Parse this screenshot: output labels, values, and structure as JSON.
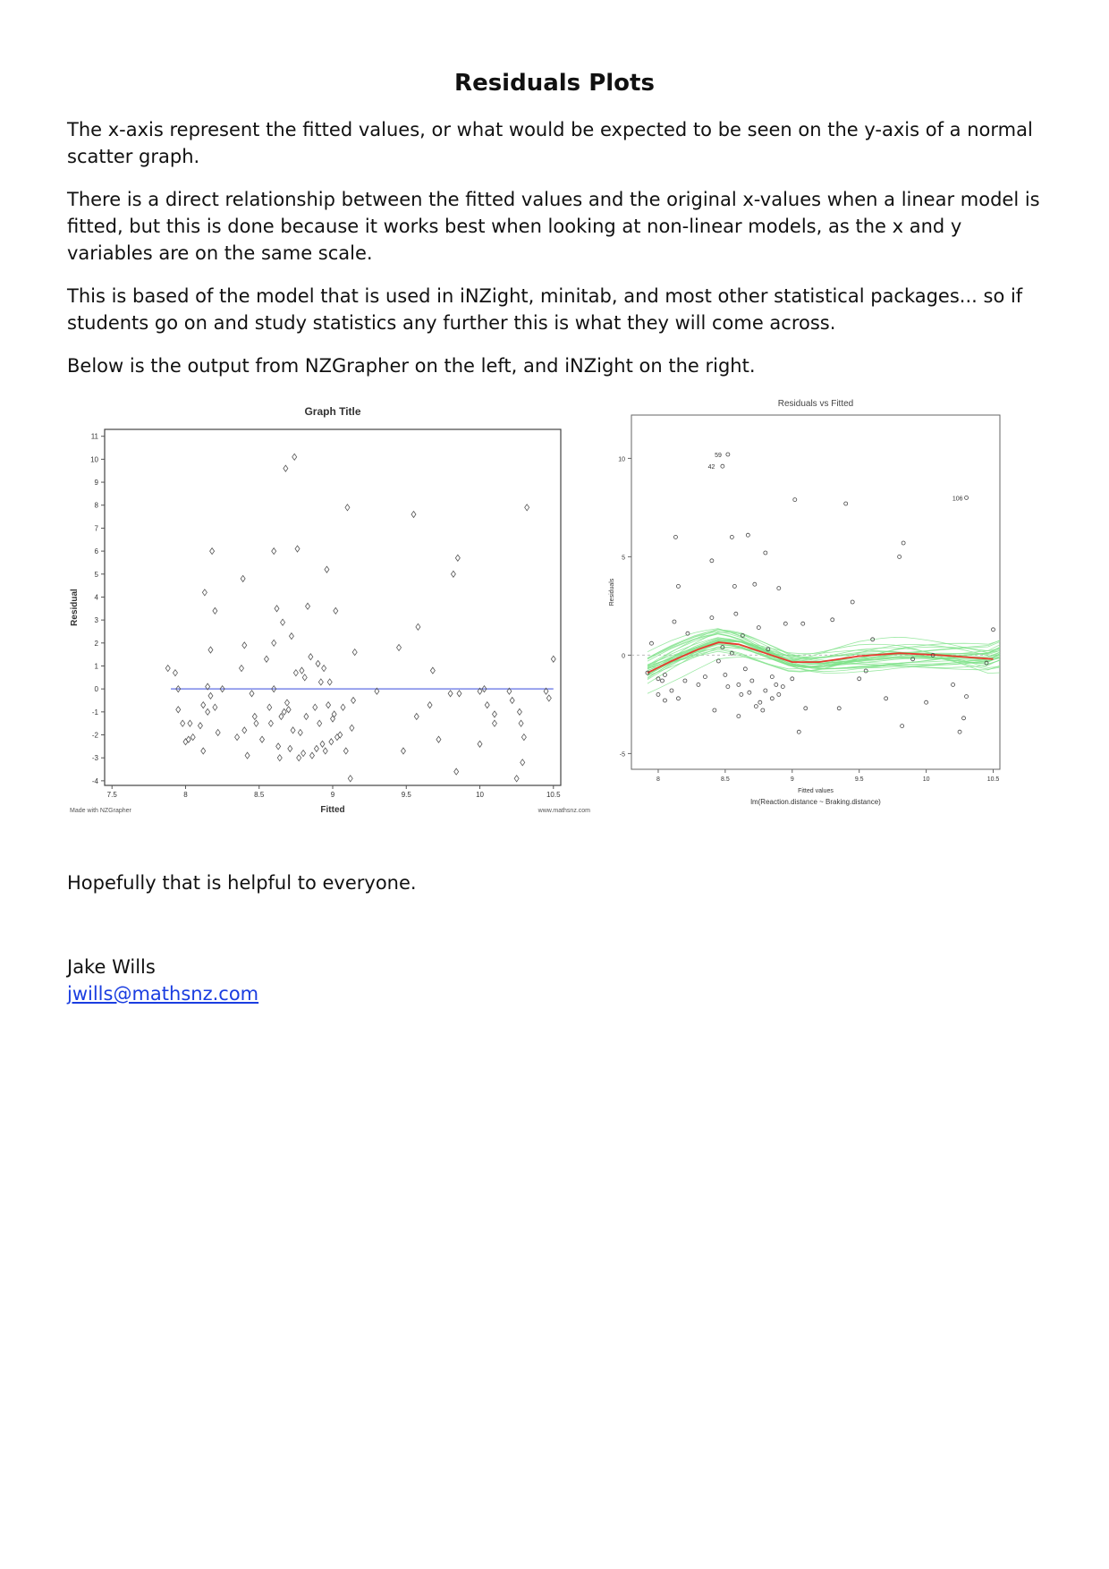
{
  "document": {
    "title": "Residuals Plots",
    "paragraphs": [
      "The x-axis represent the fitted values, or what would be expected to be seen on the y-axis of a normal scatter graph.",
      "There is a direct relationship between the fitted values and the original x-values when a linear model is fitted, but this is done because it works best when looking at non-linear models, as the x and y variables are on the same scale.",
      "This is based of the model that is used in iNZight, minitab, and most other statistical packages... so if students go on and study statistics any further this is what they will come across.",
      "Below is the output from NZGrapher on the left, and iNZight on the right."
    ],
    "closing": "Hopefully that is helpful to everyone.",
    "author": "Jake Wills",
    "email": "jwills@mathsnz.com"
  },
  "chart_data": [
    {
      "type": "scatter",
      "title": "Graph Title",
      "xlabel": "Fitted",
      "ylabel": "Residual",
      "footer_left": "Made with NZGrapher",
      "footer_right": "www.mathsnz.com",
      "xlim": [
        7.45,
        10.55
      ],
      "ylim": [
        -4.2,
        11.3
      ],
      "xticks": [
        "7.5",
        "8",
        "8.5",
        "9",
        "9.5",
        "10",
        "10.5"
      ],
      "yticks": [
        "-4",
        "-3",
        "-2",
        "-1",
        "0",
        "1",
        "2",
        "3",
        "4",
        "5",
        "6",
        "7",
        "8",
        "9",
        "10",
        "11"
      ],
      "reference_line_y": 0,
      "colors": {
        "points": "#555555",
        "reference": "#7a86e8",
        "axis": "#444444"
      },
      "points": [
        [
          7.88,
          0.9
        ],
        [
          7.93,
          0.7
        ],
        [
          7.95,
          0
        ],
        [
          7.95,
          -0.9
        ],
        [
          7.98,
          -1.5
        ],
        [
          8.0,
          -2.3
        ],
        [
          8.02,
          -2.2
        ],
        [
          8.03,
          -1.5
        ],
        [
          8.05,
          -2.1
        ],
        [
          8.1,
          -1.6
        ],
        [
          8.12,
          -2.7
        ],
        [
          8.13,
          4.2
        ],
        [
          8.15,
          0.1
        ],
        [
          8.15,
          -1.0
        ],
        [
          8.17,
          1.7
        ],
        [
          8.18,
          6.0
        ],
        [
          8.2,
          3.4
        ],
        [
          8.2,
          -0.8
        ],
        [
          8.22,
          -1.9
        ],
        [
          8.12,
          -0.7
        ],
        [
          8.17,
          -0.3
        ],
        [
          8.35,
          -2.1
        ],
        [
          8.38,
          0.9
        ],
        [
          8.39,
          4.8
        ],
        [
          8.4,
          1.9
        ],
        [
          8.4,
          -1.8
        ],
        [
          8.42,
          -2.9
        ],
        [
          8.45,
          -0.2
        ],
        [
          8.47,
          -1.2
        ],
        [
          8.48,
          -1.5
        ],
        [
          8.52,
          -2.2
        ],
        [
          8.55,
          1.3
        ],
        [
          8.57,
          -0.8
        ],
        [
          8.58,
          -1.5
        ],
        [
          8.6,
          6.0
        ],
        [
          8.6,
          2.0
        ],
        [
          8.6,
          0.0
        ],
        [
          8.62,
          3.5
        ],
        [
          8.63,
          -2.5
        ],
        [
          8.64,
          -3.0
        ],
        [
          8.65,
          -1.2
        ],
        [
          8.66,
          2.9
        ],
        [
          8.67,
          -1.0
        ],
        [
          8.68,
          9.6
        ],
        [
          8.69,
          -0.6
        ],
        [
          8.7,
          -0.9
        ],
        [
          8.71,
          -2.6
        ],
        [
          8.72,
          2.3
        ],
        [
          8.73,
          -1.8
        ],
        [
          8.74,
          10.1
        ],
        [
          8.75,
          0.7
        ],
        [
          8.76,
          6.1
        ],
        [
          8.77,
          -3.0
        ],
        [
          8.78,
          -1.9
        ],
        [
          8.79,
          0.8
        ],
        [
          8.8,
          -2.8
        ],
        [
          8.81,
          0.5
        ],
        [
          8.82,
          -1.2
        ],
        [
          8.83,
          3.6
        ],
        [
          8.85,
          1.4
        ],
        [
          8.86,
          -2.9
        ],
        [
          8.88,
          -0.8
        ],
        [
          8.89,
          -2.6
        ],
        [
          8.9,
          1.1
        ],
        [
          8.91,
          -1.5
        ],
        [
          8.92,
          0.3
        ],
        [
          8.93,
          -2.4
        ],
        [
          8.94,
          0.9
        ],
        [
          8.95,
          -2.7
        ],
        [
          8.96,
          5.2
        ],
        [
          8.97,
          -0.7
        ],
        [
          8.98,
          0.3
        ],
        [
          8.99,
          -2.3
        ],
        [
          9.0,
          -1.3
        ],
        [
          9.01,
          -1.1
        ],
        [
          9.02,
          3.4
        ],
        [
          9.03,
          -2.1
        ],
        [
          9.05,
          -2.0
        ],
        [
          9.07,
          -0.8
        ],
        [
          9.09,
          -2.7
        ],
        [
          9.1,
          7.9
        ],
        [
          9.12,
          -3.9
        ],
        [
          9.13,
          -1.7
        ],
        [
          9.14,
          -0.5
        ],
        [
          9.15,
          1.6
        ],
        [
          9.45,
          1.8
        ],
        [
          9.48,
          -2.7
        ],
        [
          9.55,
          7.6
        ],
        [
          9.57,
          -1.2
        ],
        [
          9.58,
          2.7
        ],
        [
          9.66,
          -0.7
        ],
        [
          9.68,
          0.8
        ],
        [
          9.72,
          -2.2
        ],
        [
          9.8,
          -0.2
        ],
        [
          9.82,
          5.0
        ],
        [
          9.85,
          5.7
        ],
        [
          9.84,
          -3.6
        ],
        [
          9.86,
          -0.2
        ],
        [
          10.0,
          -0.1
        ],
        [
          10.0,
          -2.4
        ],
        [
          10.03,
          0.0
        ],
        [
          10.05,
          -0.7
        ],
        [
          10.1,
          -1.5
        ],
        [
          10.1,
          -1.1
        ],
        [
          10.22,
          -0.5
        ],
        [
          10.25,
          -3.9
        ],
        [
          10.27,
          -1.0
        ],
        [
          10.28,
          -1.5
        ],
        [
          10.29,
          -3.2
        ],
        [
          10.3,
          -2.1
        ],
        [
          10.32,
          7.9
        ],
        [
          10.45,
          -0.1
        ],
        [
          10.47,
          -0.4
        ],
        [
          10.5,
          1.3
        ],
        [
          10.2,
          -0.1
        ],
        [
          8.25,
          0.0
        ],
        [
          9.3,
          -0.1
        ]
      ]
    },
    {
      "type": "scatter",
      "title": "Residuals vs Fitted",
      "xlabel": "Fitted values",
      "ylabel": "Residuals",
      "subtitle": "lm(Reaction.distance ~ Braking.distance)",
      "xlim": [
        7.8,
        10.55
      ],
      "ylim": [
        -5.8,
        12.2
      ],
      "xticks": [
        "8",
        "8.5",
        "9",
        "9.5",
        "10",
        "10.5"
      ],
      "yticks": [
        "-5",
        "0",
        "5",
        "10"
      ],
      "point_labels": [
        {
          "label": "59",
          "x": 8.5,
          "y": 10.2
        },
        {
          "label": "42",
          "x": 8.45,
          "y": 9.6
        },
        {
          "label": "106",
          "x": 10.3,
          "y": 8.0
        }
      ],
      "colors": {
        "points": "#444444",
        "smooth": "#e83a2e",
        "bootstrap": "#7fe28a",
        "zero": "#bbbbbb"
      },
      "smooth_line": [
        [
          7.92,
          -0.9
        ],
        [
          8.1,
          -0.3
        ],
        [
          8.3,
          0.3
        ],
        [
          8.45,
          0.65
        ],
        [
          8.6,
          0.55
        ],
        [
          8.8,
          0.1
        ],
        [
          9.0,
          -0.35
        ],
        [
          9.2,
          -0.35
        ],
        [
          9.5,
          -0.05
        ],
        [
          9.8,
          0.1
        ],
        [
          10.1,
          0.0
        ],
        [
          10.3,
          -0.1
        ],
        [
          10.5,
          -0.2
        ]
      ],
      "points": [
        [
          7.92,
          -0.9
        ],
        [
          7.95,
          0.6
        ],
        [
          8.0,
          -1.2
        ],
        [
          8.0,
          -2.0
        ],
        [
          8.03,
          -1.3
        ],
        [
          8.05,
          -1.0
        ],
        [
          8.05,
          -2.3
        ],
        [
          8.1,
          -1.8
        ],
        [
          8.12,
          1.7
        ],
        [
          8.13,
          6.0
        ],
        [
          8.15,
          -2.2
        ],
        [
          8.15,
          3.5
        ],
        [
          8.2,
          -1.3
        ],
        [
          8.22,
          1.1
        ],
        [
          8.3,
          -1.5
        ],
        [
          8.35,
          -1.1
        ],
        [
          8.4,
          1.9
        ],
        [
          8.4,
          4.8
        ],
        [
          8.42,
          -2.8
        ],
        [
          8.45,
          -0.3
        ],
        [
          8.48,
          0.4
        ],
        [
          8.5,
          -1.0
        ],
        [
          8.52,
          -1.6
        ],
        [
          8.55,
          6.0
        ],
        [
          8.55,
          0.1
        ],
        [
          8.57,
          3.5
        ],
        [
          8.58,
          2.1
        ],
        [
          8.6,
          -1.5
        ],
        [
          8.6,
          -3.1
        ],
        [
          8.62,
          -2.0
        ],
        [
          8.63,
          1.0
        ],
        [
          8.65,
          -0.7
        ],
        [
          8.67,
          6.1
        ],
        [
          8.68,
          -1.9
        ],
        [
          8.7,
          -1.3
        ],
        [
          8.72,
          3.6
        ],
        [
          8.73,
          -2.6
        ],
        [
          8.75,
          1.4
        ],
        [
          8.76,
          -2.4
        ],
        [
          8.78,
          -2.8
        ],
        [
          8.8,
          5.2
        ],
        [
          8.8,
          -1.8
        ],
        [
          8.82,
          0.3
        ],
        [
          8.85,
          -1.1
        ],
        [
          8.85,
          -2.2
        ],
        [
          8.88,
          -1.5
        ],
        [
          8.9,
          3.4
        ],
        [
          8.9,
          -2.0
        ],
        [
          8.93,
          -1.6
        ],
        [
          8.95,
          1.6
        ],
        [
          9.0,
          -1.2
        ],
        [
          9.02,
          7.9
        ],
        [
          9.05,
          -3.9
        ],
        [
          9.08,
          1.6
        ],
        [
          9.1,
          -2.7
        ],
        [
          9.3,
          1.8
        ],
        [
          9.35,
          -2.7
        ],
        [
          9.4,
          7.7
        ],
        [
          9.45,
          2.7
        ],
        [
          9.5,
          -1.2
        ],
        [
          9.55,
          -0.8
        ],
        [
          9.6,
          0.8
        ],
        [
          9.7,
          -2.2
        ],
        [
          9.8,
          5.0
        ],
        [
          9.83,
          5.7
        ],
        [
          9.82,
          -3.6
        ],
        [
          9.9,
          -0.2
        ],
        [
          10.0,
          -2.4
        ],
        [
          10.05,
          0.0
        ],
        [
          10.2,
          -1.5
        ],
        [
          10.25,
          -3.9
        ],
        [
          10.28,
          -3.2
        ],
        [
          10.3,
          -2.1
        ],
        [
          10.3,
          8.0
        ],
        [
          10.45,
          -0.4
        ],
        [
          10.5,
          1.3
        ],
        [
          8.48,
          9.6
        ],
        [
          8.52,
          10.2
        ]
      ]
    }
  ]
}
